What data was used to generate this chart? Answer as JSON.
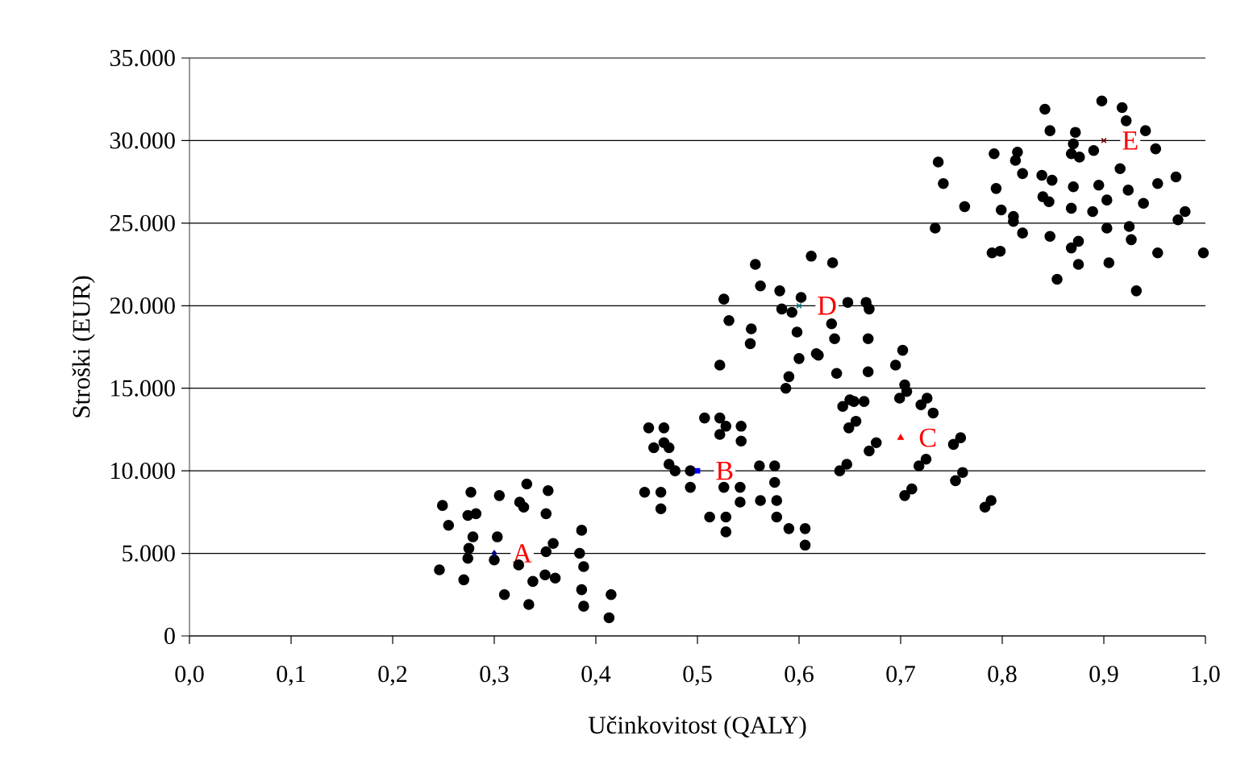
{
  "chart_data": {
    "type": "scatter",
    "xlabel": "Učinkovitost (QALY)",
    "ylabel": "Stroški (EUR)",
    "xlim": [
      0,
      1
    ],
    "ylim": [
      0,
      35000
    ],
    "xticks": [
      {
        "value": 0,
        "label": "0,0"
      },
      {
        "value": 0.1,
        "label": "0,1"
      },
      {
        "value": 0.2,
        "label": "0,2"
      },
      {
        "value": 0.3,
        "label": "0,3"
      },
      {
        "value": 0.4,
        "label": "0,4"
      },
      {
        "value": 0.5,
        "label": "0,5"
      },
      {
        "value": 0.6,
        "label": "0,6"
      },
      {
        "value": 0.7,
        "label": "0,7"
      },
      {
        "value": 0.8,
        "label": "0,8"
      },
      {
        "value": 0.9,
        "label": "0,9"
      },
      {
        "value": 1,
        "label": "1,0"
      }
    ],
    "yticks": [
      0,
      {
        "value": 5000,
        "label": "5.000"
      },
      {
        "value": 10000,
        "label": "10.000"
      },
      {
        "value": 15000,
        "label": "15.000"
      },
      {
        "value": 20000,
        "label": "20.000"
      },
      {
        "value": 25000,
        "label": "25.000"
      },
      {
        "value": 30000,
        "label": "30.000"
      },
      {
        "value": 35000,
        "label": "35.000"
      }
    ],
    "grid": "y",
    "marker": "circle",
    "series": [
      {
        "color": "#000000",
        "x": [
          0.249,
          0.277,
          0.305,
          0.332,
          0.353,
          0.325,
          0.329,
          0.351,
          0.274,
          0.282,
          0.255,
          0.279,
          0.303,
          0.386,
          0.275,
          0.274,
          0.3,
          0.358,
          0.351,
          0.384,
          0.388,
          0.324,
          0.246,
          0.27,
          0.35,
          0.36,
          0.338,
          0.386,
          0.31,
          0.415,
          0.334,
          0.388,
          0.413,
          0.452,
          0.467,
          0.507,
          0.522,
          0.528,
          0.543,
          0.522,
          0.543,
          0.467,
          0.472,
          0.457,
          0.472,
          0.478,
          0.493,
          0.493,
          0.561,
          0.576,
          0.576,
          0.526,
          0.542,
          0.448,
          0.464,
          0.542,
          0.562,
          0.578,
          0.464,
          0.512,
          0.528,
          0.578,
          0.528,
          0.59,
          0.606,
          0.606,
          0.612,
          0.633,
          0.557,
          0.562,
          0.581,
          0.526,
          0.602,
          0.583,
          0.593,
          0.648,
          0.666,
          0.669,
          0.531,
          0.632,
          0.553,
          0.598,
          0.635,
          0.668,
          0.552,
          0.617,
          0.619,
          0.6,
          0.522,
          0.637,
          0.668,
          0.59,
          0.587,
          0.65,
          0.654,
          0.664,
          0.643,
          0.656,
          0.649,
          0.676,
          0.669,
          0.647,
          0.64,
          0.702,
          0.695,
          0.704,
          0.706,
          0.699,
          0.726,
          0.72,
          0.732,
          0.759,
          0.752,
          0.725,
          0.718,
          0.761,
          0.754,
          0.711,
          0.704,
          0.789,
          0.783,
          0.898,
          0.918,
          0.842,
          0.922,
          0.847,
          0.872,
          0.941,
          0.87,
          0.89,
          0.868,
          0.876,
          0.951,
          0.792,
          0.815,
          0.813,
          0.737,
          0.916,
          0.82,
          0.839,
          0.849,
          0.971,
          0.742,
          0.895,
          0.953,
          0.794,
          0.87,
          0.924,
          0.84,
          0.846,
          0.903,
          0.939,
          0.763,
          0.799,
          0.868,
          0.889,
          0.98,
          0.811,
          0.811,
          0.973,
          0.734,
          0.903,
          0.925,
          0.82,
          0.847,
          0.927,
          0.875,
          0.868,
          0.79,
          0.798,
          0.953,
          0.998,
          0.875,
          0.905,
          0.854,
          0.932
        ],
        "values": [
          7900,
          8700,
          8500,
          9200,
          8800,
          8100,
          7800,
          7400,
          7300,
          7400,
          6700,
          6000,
          6000,
          6400,
          5300,
          4700,
          4600,
          5600,
          5100,
          5000,
          4200,
          4300,
          4000,
          3400,
          3700,
          3500,
          3300,
          2800,
          2500,
          2500,
          1900,
          1800,
          1100,
          12600,
          12600,
          13200,
          13200,
          12700,
          12700,
          12200,
          11800,
          11700,
          11400,
          11400,
          10400,
          10000,
          10000,
          9000,
          10300,
          10300,
          9300,
          9000,
          9000,
          8700,
          8700,
          8100,
          8200,
          8200,
          7700,
          7200,
          7200,
          7200,
          6300,
          6500,
          6500,
          5500,
          23000,
          22600,
          22500,
          21200,
          20900,
          20400,
          20500,
          19800,
          19600,
          20200,
          20200,
          19800,
          19100,
          18900,
          18600,
          18400,
          18000,
          18000,
          17700,
          17100,
          17000,
          16800,
          16400,
          15900,
          16000,
          15700,
          15000,
          14300,
          14200,
          14200,
          13900,
          13000,
          12600,
          11700,
          11200,
          10400,
          10000,
          17300,
          16400,
          15200,
          14800,
          14400,
          14400,
          14000,
          13500,
          12000,
          11600,
          10700,
          10300,
          9900,
          9400,
          8900,
          8500,
          8200,
          7800,
          32400,
          32000,
          31900,
          31200,
          30600,
          30500,
          30600,
          29800,
          29400,
          29200,
          29000,
          29500,
          29200,
          29300,
          28800,
          28700,
          28300,
          28000,
          27900,
          27600,
          27800,
          27400,
          27300,
          27400,
          27100,
          27200,
          27000,
          26600,
          26300,
          26400,
          26200,
          26000,
          25800,
          25900,
          25700,
          25700,
          25400,
          25100,
          25200,
          24700,
          24700,
          24800,
          24400,
          24200,
          24000,
          23900,
          23500,
          23200,
          23300,
          23200,
          23200,
          22500,
          22600,
          21600,
          20900
        ]
      },
      {
        "color": "#000080",
        "marker": "diamond",
        "x": [
          0.3
        ],
        "values": [
          5000
        ]
      },
      {
        "color": "#0000ff",
        "marker": "square",
        "x": [
          0.5
        ],
        "values": [
          10000
        ]
      },
      {
        "color": "#ff0000",
        "marker": "triangle",
        "x": [
          0.7
        ],
        "values": [
          12000
        ]
      },
      {
        "color": "#008080",
        "marker": "cross",
        "x": [
          0.6
        ],
        "values": [
          20000
        ]
      },
      {
        "color": "#800000",
        "marker": "cross",
        "x": [
          0.9
        ],
        "values": [
          30000
        ]
      }
    ],
    "annotations": [
      {
        "text": "A",
        "x": 0.3,
        "y": 5000
      },
      {
        "text": "B",
        "x": 0.5,
        "y": 10000
      },
      {
        "text": "C",
        "x": 0.7,
        "y": 12000
      },
      {
        "text": "D",
        "x": 0.6,
        "y": 20000
      },
      {
        "text": "E",
        "x": 0.9,
        "y": 30000
      }
    ]
  }
}
